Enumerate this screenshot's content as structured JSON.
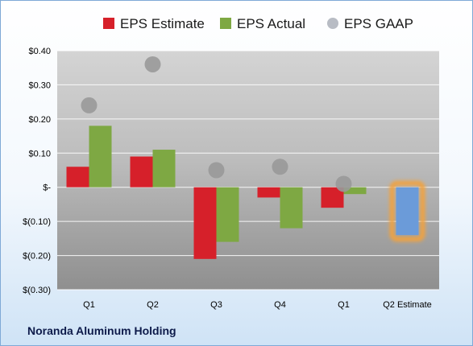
{
  "company": "Noranda Aluminum Holding",
  "chart_data": {
    "type": "bar",
    "categories": [
      "Q1",
      "Q2",
      "Q3",
      "Q4",
      "Q1",
      "Q2 Estimate"
    ],
    "series": [
      {
        "name": "EPS Estimate",
        "color": "#d6202a",
        "values": [
          0.06,
          0.09,
          -0.21,
          -0.03,
          -0.06,
          null
        ]
      },
      {
        "name": "EPS Actual",
        "color": "#7ea843",
        "values": [
          0.18,
          0.11,
          -0.16,
          -0.12,
          -0.02,
          null
        ]
      },
      {
        "name": "EPS GAAP",
        "color": "#b8bcc4",
        "marker": "circle",
        "values": [
          0.24,
          0.36,
          0.05,
          0.06,
          0.01,
          null
        ]
      }
    ],
    "forecast": {
      "category": "Q2 Estimate",
      "value": -0.14,
      "color": "#6b9bd9",
      "outline_color": "#f2a23c"
    },
    "y_tick_labels": [
      "$0.40",
      "$0.30",
      "$0.20",
      "$0.10",
      "$-",
      "$(0.10)",
      "$(0.20)",
      "$(0.30)"
    ],
    "ylim": [
      -0.3,
      0.4
    ],
    "grid": true,
    "legend_position": "top"
  }
}
